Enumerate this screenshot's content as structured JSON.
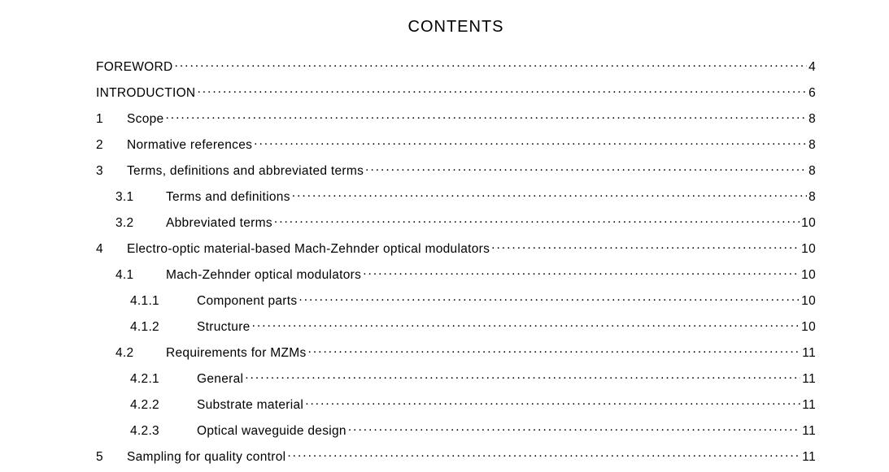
{
  "title": "CONTENTS",
  "text_color": "#000000",
  "background_color": "#ffffff",
  "font_family": "Arial",
  "title_fontsize": 20,
  "row_fontsize": 15.5,
  "entries": [
    {
      "level": 0,
      "number": "",
      "text": "FOREWORD",
      "page": "4"
    },
    {
      "level": 0,
      "number": "",
      "text": "INTRODUCTION",
      "page": "6"
    },
    {
      "level": 1,
      "number": "1",
      "text": "Scope",
      "page": "8"
    },
    {
      "level": 1,
      "number": "2",
      "text": "Normative references",
      "page": "8"
    },
    {
      "level": 1,
      "number": "3",
      "text": "Terms, definitions and abbreviated terms",
      "page": "8"
    },
    {
      "level": 2,
      "number": "3.1",
      "text": "Terms and definitions",
      "page": "8"
    },
    {
      "level": 2,
      "number": "3.2",
      "text": "Abbreviated terms",
      "page": "10"
    },
    {
      "level": 1,
      "number": "4",
      "text": "Electro-optic material-based Mach-Zehnder optical modulators",
      "page": "10"
    },
    {
      "level": 2,
      "number": "4.1",
      "text": "Mach-Zehnder optical modulators",
      "page": "10"
    },
    {
      "level": 3,
      "number": "4.1.1",
      "text": "Component parts",
      "page": "10"
    },
    {
      "level": 3,
      "number": "4.1.2",
      "text": "Structure",
      "page": "10"
    },
    {
      "level": 2,
      "number": "4.2",
      "text": "Requirements for MZMs",
      "page": "11"
    },
    {
      "level": 3,
      "number": "4.2.1",
      "text": "General",
      "page": "11"
    },
    {
      "level": 3,
      "number": "4.2.2",
      "text": "Substrate material",
      "page": "11"
    },
    {
      "level": 3,
      "number": "4.2.3",
      "text": "Optical waveguide design",
      "page": "11"
    },
    {
      "level": 1,
      "number": "5",
      "text": "Sampling for quality control",
      "page": "11"
    }
  ]
}
